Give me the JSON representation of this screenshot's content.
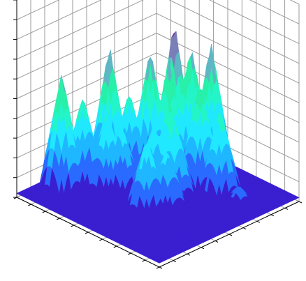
{
  "chart_data": {
    "type": "surface",
    "title": "",
    "xlabel": "",
    "ylabel": "",
    "zlabel": "",
    "grid": true,
    "xlim": [
      0,
      10
    ],
    "ylim": [
      0,
      10
    ],
    "zlim": [
      0,
      10
    ],
    "colormap": [
      "#3a1fd1",
      "#2a6bff",
      "#1fb7ff",
      "#20e8ff",
      "#23f5c8",
      "#28f0a8",
      "#5fb6c4",
      "#7a7fb8",
      "#6b2a9e"
    ],
    "peaks": [
      {
        "x": 1.0,
        "y": 2.2,
        "z": 6.0
      },
      {
        "x": 1.4,
        "y": 3.3,
        "z": 4.6
      },
      {
        "x": 1.8,
        "y": 4.8,
        "z": 6.8
      },
      {
        "x": 2.6,
        "y": 3.8,
        "z": 4.1
      },
      {
        "x": 2.4,
        "y": 5.6,
        "z": 4.4
      },
      {
        "x": 3.2,
        "y": 4.2,
        "z": 3.5
      },
      {
        "x": 2.9,
        "y": 6.6,
        "z": 6.4
      },
      {
        "x": 4.0,
        "y": 6.8,
        "z": 6.2
      },
      {
        "x": 3.6,
        "y": 7.6,
        "z": 7.8
      },
      {
        "x": 4.3,
        "y": 7.8,
        "z": 5.8
      },
      {
        "x": 3.8,
        "y": 8.6,
        "z": 6.2
      },
      {
        "x": 5.0,
        "y": 8.8,
        "z": 6.8
      },
      {
        "x": 5.6,
        "y": 7.4,
        "z": 5.5
      },
      {
        "x": 5.2,
        "y": 5.6,
        "z": 5.0
      },
      {
        "x": 4.7,
        "y": 5.0,
        "z": 3.8
      },
      {
        "x": 5.8,
        "y": 5.4,
        "z": 4.2
      },
      {
        "x": 6.2,
        "y": 4.4,
        "z": 3.2
      },
      {
        "x": 5.6,
        "y": 3.6,
        "z": 3.8
      },
      {
        "x": 6.9,
        "y": 7.5,
        "z": 4.5
      },
      {
        "x": 8.6,
        "y": 7.1,
        "z": 1.3
      }
    ],
    "base_level": 0.2
  }
}
